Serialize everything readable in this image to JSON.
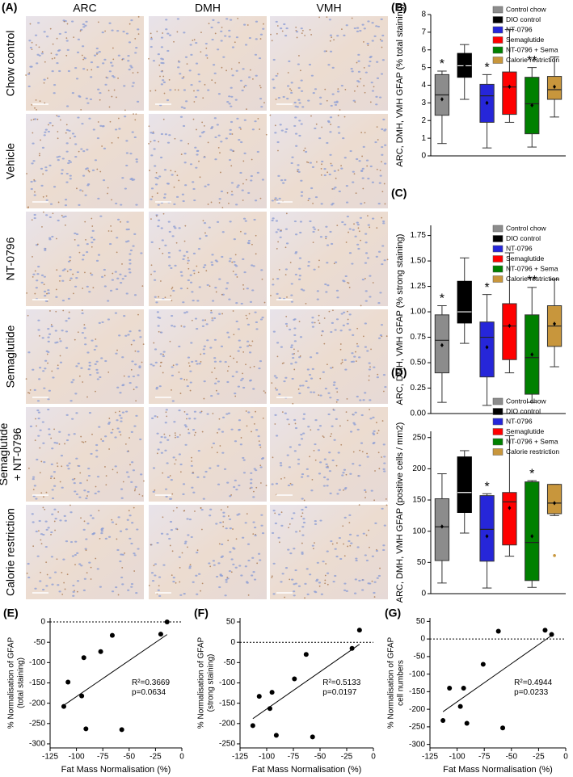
{
  "panel_a": {
    "label": "(A)",
    "columns": [
      "ARC",
      "DMH",
      "VMH"
    ],
    "rows": [
      [
        "Chow control"
      ],
      [
        "Vehicle"
      ],
      [
        "NT-0796"
      ],
      [
        "Semaglutide"
      ],
      [
        "Semaglutide",
        "+ NT-0796"
      ],
      [
        "Calorie restriction"
      ]
    ]
  },
  "chart_data": [
    {
      "type": "box",
      "panel_label": "(B)",
      "ylabel": "ARC, DMH, VMH GFAP (% total staining)",
      "ylim": [
        0,
        8
      ],
      "yticks": [
        0,
        1,
        2,
        3,
        4,
        5,
        6,
        7,
        8
      ],
      "series": [
        {
          "name": "Control chow",
          "color": "#8c8c8c",
          "min": 0.7,
          "q1": 2.3,
          "median": 3.45,
          "q3": 4.6,
          "max": 4.8,
          "mean": 3.2,
          "significance": "*"
        },
        {
          "name": "DIO control",
          "color": "#000000",
          "min": 3.2,
          "q1": 4.45,
          "median": 5.1,
          "q3": 5.8,
          "max": 6.3,
          "mean": 5.05
        },
        {
          "name": "NT-0796",
          "color": "#2626d9",
          "min": 0.45,
          "q1": 1.9,
          "median": 3.4,
          "q3": 4.05,
          "max": 4.6,
          "mean": 3.0,
          "significance": "*"
        },
        {
          "name": "Semaglutide",
          "color": "#ff0000",
          "min": 1.9,
          "q1": 2.35,
          "median": 3.9,
          "q3": 4.75,
          "max": 7.15,
          "mean": 3.9
        },
        {
          "name": "NT-0796 + Sema",
          "color": "#008000",
          "min": 0.5,
          "q1": 1.25,
          "median": 2.95,
          "q3": 4.45,
          "max": 5.0,
          "mean": 2.85,
          "significance": "**"
        },
        {
          "name": "Calorie restriction",
          "color": "#c8963c",
          "min": 2.2,
          "q1": 3.2,
          "median": 3.75,
          "q3": 4.5,
          "max": 5.6,
          "mean": 3.9
        }
      ]
    },
    {
      "type": "box",
      "panel_label": "(C)",
      "ylabel": "ARC, DMH, VMH GFAP (% strong staining)",
      "ylim": [
        0,
        1.85
      ],
      "yticks": [
        {
          "value": 0,
          "label": "0.00"
        },
        {
          "value": 0.25,
          "label": "0.25"
        },
        {
          "value": 0.5,
          "label": "0.50"
        },
        {
          "value": 0.75,
          "label": "0.75"
        },
        {
          "value": 1,
          "label": "1.00"
        },
        {
          "value": 1.25,
          "label": "1.25"
        },
        {
          "value": 1.5,
          "label": "1.50"
        },
        {
          "value": 1.75,
          "label": "1.75"
        }
      ],
      "series": [
        {
          "name": "Control chow",
          "color": "#8c8c8c",
          "min": 0.11,
          "q1": 0.4,
          "median": 0.72,
          "q3": 0.97,
          "max": 1.06,
          "mean": 0.67,
          "significance": "*"
        },
        {
          "name": "DIO control",
          "color": "#000000",
          "min": 0.69,
          "q1": 0.89,
          "median": 1.0,
          "q3": 1.3,
          "max": 1.53,
          "mean": 1.1
        },
        {
          "name": "NT-0796",
          "color": "#2626d9",
          "min": 0.08,
          "q1": 0.36,
          "median": 0.75,
          "q3": 0.9,
          "max": 1.17,
          "mean": 0.65,
          "significance": "*"
        },
        {
          "name": "Semaglutide",
          "color": "#ff0000",
          "min": 0.4,
          "q1": 0.53,
          "median": 0.86,
          "q3": 1.08,
          "max": 1.58,
          "mean": 0.86
        },
        {
          "name": "NT-0796 + Sema",
          "color": "#008000",
          "min": 0.11,
          "q1": 0.19,
          "median": 0.55,
          "q3": 0.97,
          "max": 1.24,
          "mean": 0.58,
          "significance": "**"
        },
        {
          "name": "Calorie restriction",
          "color": "#c8963c",
          "min": 0.46,
          "q1": 0.66,
          "median": 0.86,
          "q3": 1.06,
          "max": 1.32,
          "mean": 0.88
        }
      ]
    },
    {
      "type": "box",
      "panel_label": "(D)",
      "ylabel": "ARC, DMH, VMH GFAP (positive cells / mm2)",
      "ylim": [
        0,
        260
      ],
      "yticks": [
        0,
        50,
        100,
        150,
        200,
        250
      ],
      "series": [
        {
          "name": "Control chow",
          "color": "#8c8c8c",
          "min": 17,
          "q1": 53,
          "median": 107,
          "q3": 152,
          "max": 192,
          "mean": 107
        },
        {
          "name": "DIO control",
          "color": "#000000",
          "min": 97,
          "q1": 130,
          "median": 162,
          "q3": 219,
          "max": 229,
          "mean": 170
        },
        {
          "name": "NT-0796",
          "color": "#2626d9",
          "min": 9,
          "q1": 52,
          "median": 103,
          "q3": 157,
          "max": 160,
          "mean": 92,
          "significance": "*"
        },
        {
          "name": "Semaglutide",
          "color": "#ff0000",
          "min": 60,
          "q1": 78,
          "median": 147,
          "q3": 162,
          "max": 253,
          "mean": 137
        },
        {
          "name": "NT-0796 + Sema",
          "color": "#008000",
          "min": 10,
          "q1": 21,
          "median": 82,
          "q3": 179,
          "max": 181,
          "mean": 92,
          "significance": "*"
        },
        {
          "name": "Calorie restriction",
          "color": "#c8963c",
          "min": 125,
          "q1": 128,
          "median": 145,
          "q3": 175,
          "max": 175,
          "mean": 145,
          "outliers": [
            61
          ]
        }
      ]
    },
    {
      "type": "scatter",
      "panel_label": "(E)",
      "xlabel": "Fat Mass Normalisation (%)",
      "ylabel": [
        "% Normalisation of GFAP",
        "(total staining)"
      ],
      "xlim": [
        -125,
        0
      ],
      "xticks": [
        -125,
        -100,
        -75,
        -50,
        -25,
        0
      ],
      "ylim": [
        -310,
        10
      ],
      "yticks": [
        0,
        -50,
        -100,
        -150,
        -200,
        -250,
        -300
      ],
      "x": [
        -112,
        -108,
        -95,
        -93,
        -91,
        -77,
        -66,
        -57,
        -20,
        -14
      ],
      "y": [
        -208,
        -148,
        -182,
        -88,
        -263,
        -73,
        -33,
        -265,
        -30,
        0
      ],
      "fit": {
        "x": [
          -112,
          -14
        ],
        "y": [
          -205,
          -31
        ]
      },
      "hline": 0,
      "annotation": [
        "R²=0.3669",
        "p=0.0634"
      ]
    },
    {
      "type": "scatter",
      "panel_label": "(F)",
      "xlabel": "Fat Mass Normalisation (%)",
      "ylabel": [
        "% Normalisation of GFAP",
        "(strong staining)"
      ],
      "xlim": [
        -125,
        0
      ],
      "xticks": [
        -125,
        -100,
        -75,
        -50,
        -25,
        0
      ],
      "ylim": [
        -260,
        60
      ],
      "yticks": [
        50,
        0,
        -50,
        -100,
        -150,
        -200,
        -250
      ],
      "x": [
        -113,
        -107,
        -97,
        -95,
        -91,
        -74,
        -63,
        -57,
        -20,
        -13
      ],
      "y": [
        -205,
        -133,
        -163,
        -123,
        -229,
        -90,
        -30,
        -233,
        -15,
        30
      ],
      "fit": {
        "x": [
          -113,
          -13
        ],
        "y": [
          -188,
          -5
        ]
      },
      "hline": 0,
      "annotation": [
        "R²=0.5133",
        "p=0.0197"
      ]
    },
    {
      "type": "scatter",
      "panel_label": "(G)",
      "xlabel": "Fat Mass Normalisation (%)",
      "ylabel": [
        "% Normalisation of GFAP",
        "cell numbers"
      ],
      "xlim": [
        -125,
        0
      ],
      "xticks": [
        -125,
        -100,
        -75,
        -50,
        -25,
        0
      ],
      "ylim": [
        -310,
        60
      ],
      "yticks": [
        50,
        0,
        -50,
        -100,
        -150,
        -200,
        -250,
        -300
      ],
      "x": [
        -113,
        -107,
        -97,
        -94,
        -91,
        -76,
        -62,
        -58,
        -19,
        -13
      ],
      "y": [
        -232,
        -140,
        -192,
        -140,
        -240,
        -72,
        22,
        -253,
        25,
        13
      ],
      "fit": {
        "x": [
          -113,
          -13
        ],
        "y": [
          -207,
          10
        ]
      },
      "hline": 0,
      "annotation": [
        "R²=0.4944",
        "p=0.0233"
      ]
    }
  ]
}
